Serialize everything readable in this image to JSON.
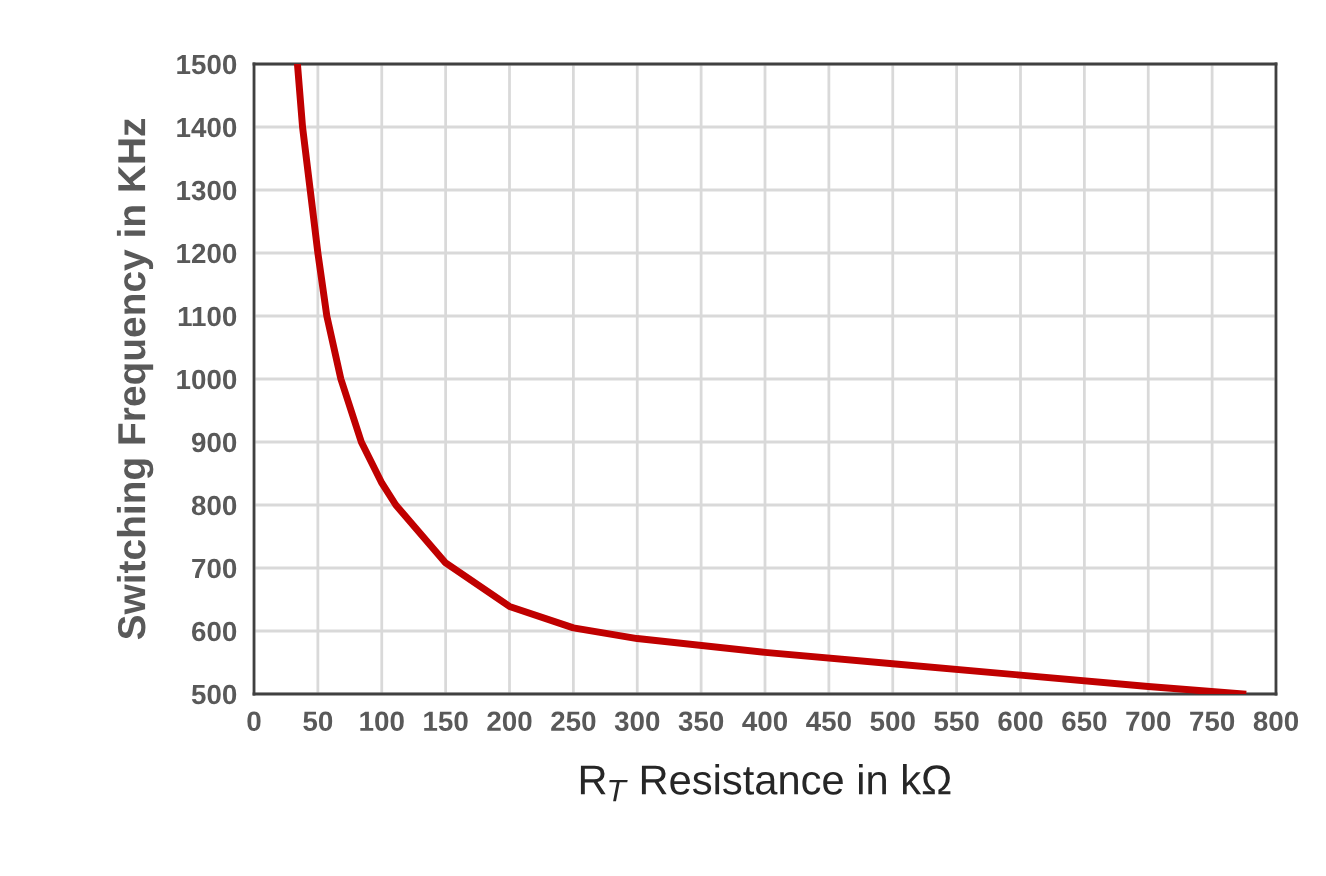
{
  "chart_data": {
    "type": "line",
    "xlabel": "R$_{T}$ Resistance in kΩ",
    "ylabel": "Switching Frequency in KHz",
    "x": [
      34,
      38,
      44,
      50,
      57,
      68,
      84,
      100,
      111,
      150,
      200,
      250,
      300,
      400,
      500,
      600,
      700,
      774
    ],
    "series": [
      {
        "color": "#c00000",
        "values": [
          1500,
          1400,
          1300,
          1200,
          1100,
          1000,
          900,
          835,
          800,
          708,
          639,
          605,
          588,
          566,
          548,
          530,
          512,
          500
        ]
      }
    ],
    "xlim": [
      0,
      800
    ],
    "xticks": [
      0,
      50,
      100,
      150,
      200,
      250,
      300,
      350,
      400,
      450,
      500,
      550,
      600,
      650,
      700,
      750,
      800
    ],
    "ylim": [
      500,
      1500
    ],
    "yticks": [
      500,
      600,
      700,
      800,
      900,
      1000,
      1100,
      1200,
      1300,
      1400,
      1500
    ],
    "grid": true,
    "marker": "none",
    "line_style": "solid"
  }
}
